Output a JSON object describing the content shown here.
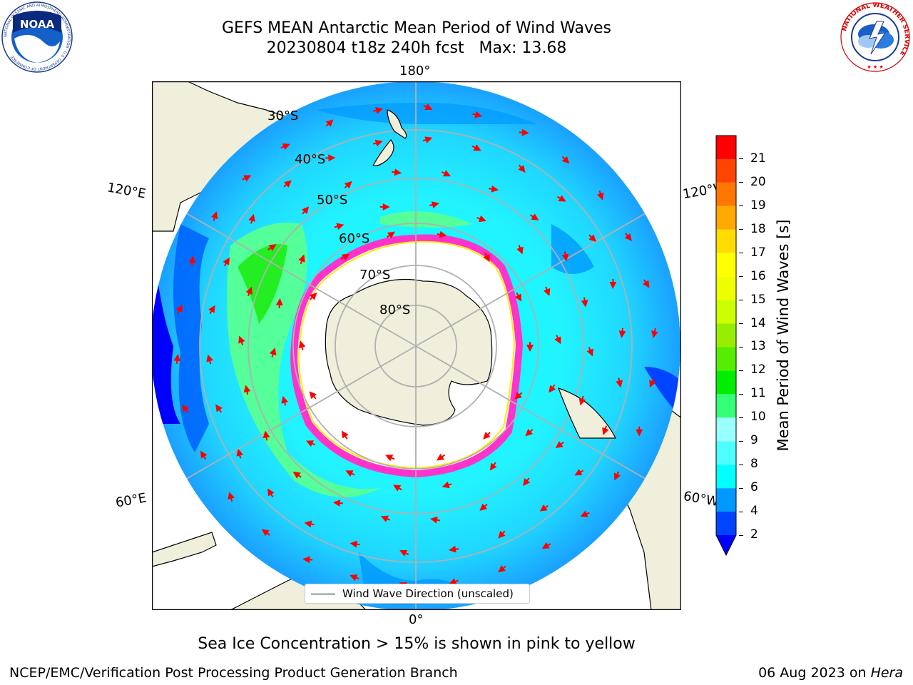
{
  "header": {
    "title_line1": "GEFS MEAN Antarctic Mean Period of Wind Waves",
    "title_line2": "20230804 t18z 240h fcst   Max: 13.68"
  },
  "map": {
    "projection": "south-polar-stereographic",
    "longitude_labels": {
      "top": "180°",
      "bottom": "0°",
      "upper_left": "120°E",
      "upper_right": "120°W",
      "lower_left": "60°E",
      "lower_right": "60°W"
    },
    "latitude_labels": [
      "30°S",
      "40°S",
      "50°S",
      "60°S",
      "70°S",
      "80°S"
    ],
    "legend_label": "Wind Wave Direction (unscaled)",
    "max_value": 13.68
  },
  "colorbar": {
    "label": "Mean Period of Wind Waves [s]",
    "ticks": [
      "2",
      "4",
      "6",
      "8",
      "9",
      "10",
      "11",
      "12",
      "13",
      "14",
      "15",
      "16",
      "17",
      "18",
      "19",
      "20",
      "21"
    ],
    "colors": [
      "#0044ff",
      "#0099ff",
      "#00ffff",
      "#4dffff",
      "#99ffff",
      "#33ff77",
      "#00ee00",
      "#55ee00",
      "#99ee00",
      "#ccff00",
      "#eeff00",
      "#ffff00",
      "#ffdd00",
      "#ffaa00",
      "#ff7700",
      "#ff4400",
      "#ff0000"
    ],
    "under_color": "#0000ff"
  },
  "colors": {
    "land": "#efefdb",
    "ice": "#ffffff",
    "ice_edge": "#ff33cc",
    "arrows": "#ff0000",
    "grid": "#b0b0b0"
  },
  "caption": "Sea Ice Concentration > 15% is shown in pink to yellow",
  "footer": {
    "left": "NCEP/EMC/Verification Post Processing Product Generation Branch",
    "right_date": "06 Aug 2023 on ",
    "right_host": "Hera"
  },
  "logos": {
    "left": "NOAA",
    "left_ring_text": "NATIONAL OCEANIC AND ATMOSPHERIC ADMINISTRATION · U.S. DEPARTMENT OF COMMERCE",
    "right_ring_text": "NATIONAL WEATHER SERVICE"
  }
}
